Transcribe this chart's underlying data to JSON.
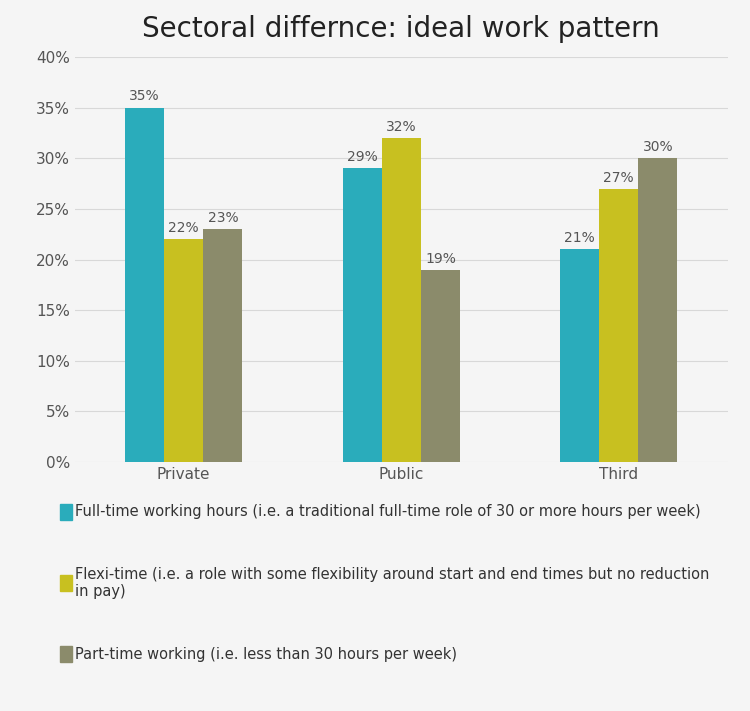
{
  "title": "Sectoral differnce: ideal work pattern",
  "categories": [
    "Private",
    "Public",
    "Third"
  ],
  "series": [
    {
      "name": "Full-time working hours (i.e. a traditional full-time role of 30 or more hours per week)",
      "values": [
        35,
        29,
        21
      ],
      "color": "#2AACBB"
    },
    {
      "name": "Flexi-time (i.e. a role with some flexibility around start and end times but no reduction\nin pay)",
      "values": [
        22,
        32,
        27
      ],
      "color": "#C8C020"
    },
    {
      "name": "Part-time working (i.e. less than 30 hours per week)",
      "values": [
        23,
        19,
        30
      ],
      "color": "#8B8B6B"
    }
  ],
  "ylim": [
    0,
    40
  ],
  "yticks": [
    0,
    5,
    10,
    15,
    20,
    25,
    30,
    35,
    40
  ],
  "ytick_labels": [
    "0%",
    "5%",
    "10%",
    "15%",
    "20%",
    "25%",
    "30%",
    "35%",
    "40%"
  ],
  "bar_width": 0.18,
  "title_fontsize": 20,
  "tick_fontsize": 11,
  "annotation_fontsize": 10,
  "legend_fontsize": 10.5,
  "background_color": "#F5F5F5",
  "grid_color": "#D8D8D8",
  "text_color": "#555555"
}
